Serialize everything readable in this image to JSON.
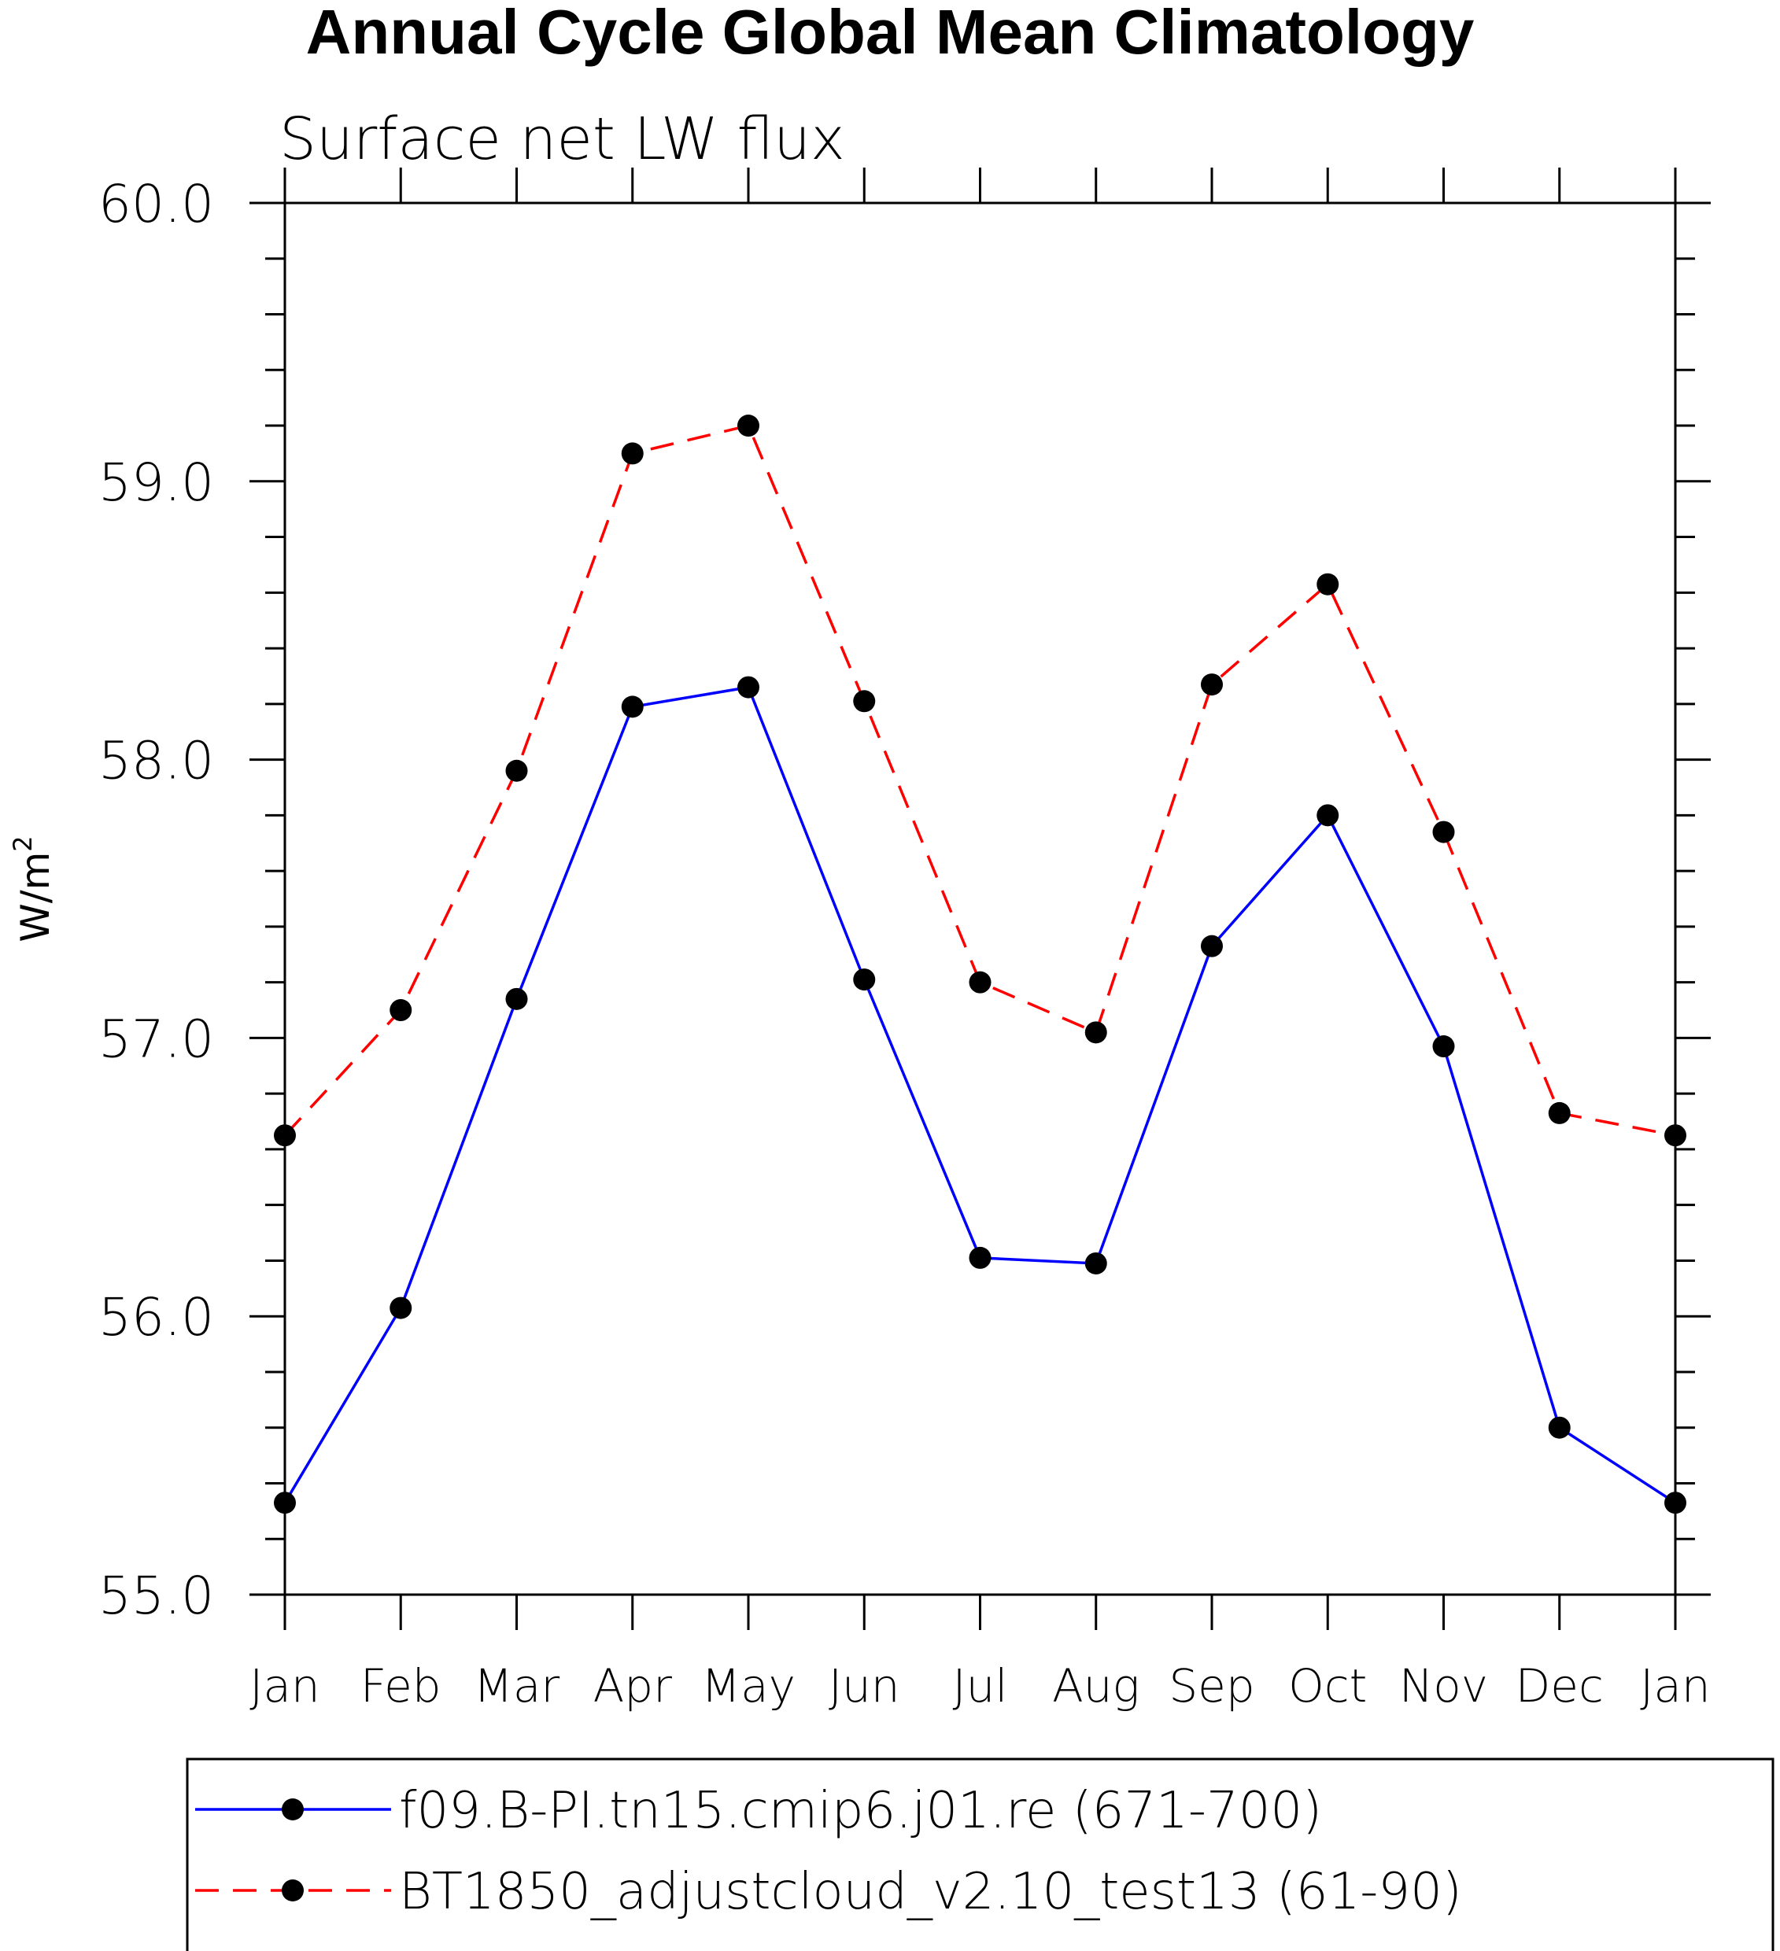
{
  "chart_data": {
    "type": "line",
    "title": "Annual Cycle Global Mean Climatology",
    "subtitle": "Surface net LW flux",
    "ylabel": "W/m",
    "ylabel_superscript": "2",
    "xlabel": "",
    "ylim": [
      55.0,
      60.0
    ],
    "y_major_ticks": [
      55.0,
      56.0,
      57.0,
      58.0,
      59.0,
      60.0
    ],
    "y_tick_labels": [
      "55.0",
      "56.0",
      "57.0",
      "58.0",
      "59.0",
      "60.0"
    ],
    "y_minor_step": 0.2,
    "categories": [
      "Jan",
      "Feb",
      "Mar",
      "Apr",
      "May",
      "Jun",
      "Jul",
      "Aug",
      "Sep",
      "Oct",
      "Nov",
      "Dec",
      "Jan"
    ],
    "grid": false,
    "legend_position": "bottom",
    "series": [
      {
        "name": "f09.B-PI.tn15.cmip6.j01.re (671-700)",
        "color": "#0000ff",
        "dash": "solid",
        "marker": "filled-circle",
        "values": [
          55.33,
          56.03,
          57.14,
          58.19,
          58.26,
          57.21,
          56.21,
          56.19,
          57.33,
          57.8,
          56.97,
          55.6,
          55.33
        ]
      },
      {
        "name": "BT1850_adjustcloud_v2.10_test13 (61-90)",
        "color": "#ff0000",
        "dash": "dashed",
        "marker": "filled-circle",
        "values": [
          56.65,
          57.1,
          57.96,
          59.1,
          59.2,
          58.21,
          57.2,
          57.02,
          58.27,
          58.63,
          57.74,
          56.73,
          56.65
        ]
      }
    ]
  }
}
